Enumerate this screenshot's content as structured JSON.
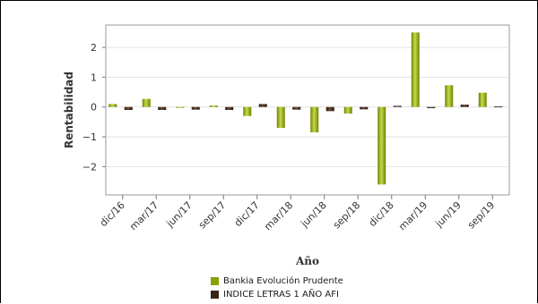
{
  "chart_data": {
    "type": "bar",
    "title": "",
    "xlabel": "Año",
    "ylabel": "Rentabilidad",
    "ylim": [
      -2.95,
      2.75
    ],
    "yticks": [
      2,
      1,
      0,
      -1,
      -2
    ],
    "ytick_labels": [
      "2",
      "1",
      "0",
      "−1",
      "−2"
    ],
    "grid": true,
    "legend_position": "bottom",
    "categories": [
      "2016-12",
      "2017-03",
      "2017-06",
      "2017-09",
      "2017-12",
      "2018-03",
      "2018-06",
      "2018-09",
      "2018-12",
      "2019-03",
      "2019-06",
      "2019-09"
    ],
    "category_labels": [
      "dic/16",
      "mar/17",
      "jun/17",
      "sep/17",
      "dic/17",
      "mar/18",
      "jun/18",
      "sep/18",
      "dic/18",
      "mar/19",
      "jun/19",
      "sep/19"
    ],
    "series": [
      {
        "name": "Bankia Evolución Prudente",
        "color": "#8aa000",
        "values": [
          0.1,
          0.27,
          0.0,
          0.05,
          -0.3,
          -0.7,
          -0.85,
          -0.22,
          -2.6,
          2.5,
          0.73,
          0.48
        ]
      },
      {
        "name": "INDICE LETRAS 1 AÑO AFI",
        "color": "#3d2418",
        "values": [
          -0.1,
          -0.1,
          -0.09,
          -0.1,
          0.1,
          -0.09,
          -0.14,
          -0.08,
          0.04,
          -0.04,
          0.08,
          0.02
        ]
      }
    ]
  }
}
